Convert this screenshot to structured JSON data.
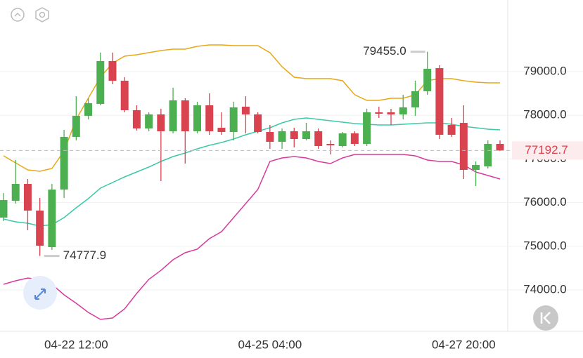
{
  "chart_data": {
    "type": "candlestick",
    "categories": [
      null,
      null,
      null,
      null,
      null,
      null,
      "04-22 12:00",
      null,
      null,
      null,
      null,
      null,
      null,
      null,
      null,
      null,
      null,
      null,
      null,
      null,
      null,
      null,
      "04-25 04:00",
      null,
      null,
      null,
      null,
      null,
      null,
      null,
      null,
      null,
      null,
      null,
      null,
      null,
      null,
      null,
      "04-27 20:00",
      null,
      null,
      null
    ],
    "open": [
      75656,
      76041,
      76427,
      75816,
      74980,
      76298,
      77505,
      77987,
      78260,
      79241,
      78791,
      78116,
      77698,
      78019,
      77633,
      78341,
      77633,
      78228,
      77713,
      77617,
      78196,
      78019,
      77617,
      77392,
      77633,
      77456,
      77633,
      77344,
      77295,
      77585,
      77344,
      78067,
      78067,
      78019,
      78180,
      78550,
      79080,
      77778,
      77826,
      76749,
      76829,
      77344
    ],
    "high": [
      76218,
      76974,
      76540,
      76106,
      76427,
      77665,
      78437,
      78389,
      79434,
      79434,
      78871,
      78228,
      78067,
      78148,
      78630,
      78389,
      78309,
      78502,
      78067,
      78309,
      78437,
      78067,
      77778,
      77698,
      77713,
      77826,
      77698,
      77424,
      77617,
      77633,
      78148,
      78196,
      78148,
      78469,
      78791,
      79455,
      79145,
      77939,
      78228,
      76942,
      77424,
      77424
    ],
    "low": [
      75575,
      75977,
      75366,
      74777.9,
      74916,
      76106,
      77424,
      77906,
      78228,
      78711,
      78067,
      77649,
      77633,
      76492,
      77585,
      76894,
      77585,
      77553,
      77553,
      77424,
      77585,
      77585,
      77231,
      77231,
      77263,
      77424,
      77231,
      77103,
      77263,
      77295,
      77295,
      77939,
      77778,
      77906,
      77987,
      78469,
      77456,
      77505,
      76540,
      76379,
      76781,
      77183
    ],
    "close": [
      76058,
      76427,
      75816,
      75012,
      76298,
      77505,
      77987,
      78276,
      79241,
      78791,
      78116,
      77698,
      78019,
      77633,
      78341,
      77633,
      78228,
      77633,
      77617,
      78180,
      78019,
      77617,
      77392,
      77633,
      77456,
      77633,
      77295,
      77312,
      77585,
      77344,
      78067,
      78035,
      78019,
      78180,
      78550,
      79064,
      77553,
      77553,
      76749,
      76861,
      77344,
      77192.7
    ],
    "up_color": "#4caf50",
    "down_color": "#d9434f",
    "bands": [
      {
        "color": "#e6a817",
        "values": [
          77070,
          76910,
          76749,
          76717,
          76781,
          77183,
          77907,
          78389,
          78871,
          79193,
          79354,
          79386,
          79434,
          79482,
          79515,
          79515,
          79579,
          79611,
          79611,
          79595,
          79595,
          79595,
          79434,
          79113,
          78871,
          78839,
          78839,
          78839,
          78791,
          78469,
          78341,
          78341,
          78389,
          78389,
          78469,
          78791,
          78839,
          78839,
          78791,
          78759,
          78743,
          78743
        ]
      },
      {
        "color": "#3cc9a8",
        "values": [
          75623,
          75559,
          75527,
          75462,
          75495,
          75655,
          75880,
          76090,
          76331,
          76459,
          76588,
          76701,
          76813,
          76942,
          77054,
          77135,
          77231,
          77312,
          77376,
          77456,
          77553,
          77633,
          77714,
          77826,
          77907,
          77939,
          77907,
          77874,
          77842,
          77810,
          77794,
          77778,
          77778,
          77794,
          77810,
          77826,
          77826,
          77794,
          77746,
          77714,
          77681,
          77665
        ]
      },
      {
        "color": "#d43c9c",
        "values": [
          74128,
          74208,
          74272,
          74240,
          74128,
          73887,
          73694,
          73485,
          73324,
          73356,
          73565,
          73919,
          74240,
          74449,
          74691,
          74851,
          74932,
          75173,
          75334,
          75655,
          75977,
          76299,
          76942,
          77022,
          77054,
          77022,
          76942,
          76894,
          77022,
          77103,
          77103,
          77103,
          77103,
          77103,
          77070,
          76974,
          76942,
          76942,
          76861,
          76701,
          76620,
          76540
        ]
      }
    ],
    "ylim": [
      73051,
      80640
    ],
    "yticks": [
      {
        "value": 74000,
        "label": "74000.0"
      },
      {
        "value": 75000,
        "label": "75000.0"
      },
      {
        "value": 76000,
        "label": "76000.0"
      },
      {
        "value": 77000,
        "label": "77000.0"
      },
      {
        "value": 78000,
        "label": "78000.0"
      },
      {
        "value": 79000,
        "label": "79000.0"
      }
    ],
    "grid": true,
    "high_marker": {
      "value": 79455,
      "label": "79455.0",
      "index": 35
    },
    "low_marker": {
      "value": 74777.9,
      "label": "74777.9",
      "index": 3
    },
    "last_price": 77192.7
  }
}
